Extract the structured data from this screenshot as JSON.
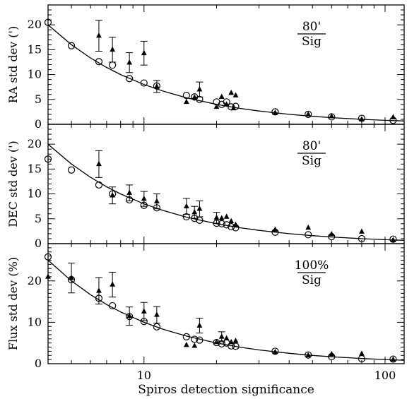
{
  "chart_data": [
    {
      "type": "scatter",
      "xlabel": "Spiros detection significance",
      "ylabel": "RA std dev (')",
      "xlim": [
        4,
        120
      ],
      "ylim": [
        0,
        24
      ],
      "xscale": "log",
      "xticks": [
        10,
        100
      ],
      "yticks": [
        0,
        5,
        10,
        15,
        20
      ],
      "annotation": {
        "numerator": "80'",
        "denominator": "Sig"
      },
      "model_curve": {
        "formula": "80/x",
        "points": [
          [
            4,
            20
          ],
          [
            5,
            16
          ],
          [
            6,
            13.33
          ],
          [
            7,
            11.43
          ],
          [
            8,
            10
          ],
          [
            10,
            8
          ],
          [
            12,
            6.67
          ],
          [
            15,
            5.33
          ],
          [
            20,
            4
          ],
          [
            25,
            3.2
          ],
          [
            30,
            2.67
          ],
          [
            40,
            2
          ],
          [
            50,
            1.6
          ],
          [
            60,
            1.33
          ],
          [
            80,
            1
          ],
          [
            100,
            0.8
          ],
          [
            120,
            0.67
          ]
        ]
      },
      "series": [
        {
          "marker": "circle",
          "points": [
            [
              4,
              20.5
            ],
            [
              5,
              15.8
            ],
            [
              6.5,
              12.6
            ],
            [
              7.4,
              11.9
            ],
            [
              8.7,
              9.2
            ],
            [
              10,
              8.3
            ],
            [
              11.3,
              7.7
            ],
            [
              15,
              5.8
            ],
            [
              16.2,
              5.5
            ],
            [
              17,
              5
            ],
            [
              20,
              4.5
            ],
            [
              21,
              4
            ],
            [
              22,
              4.5
            ],
            [
              23,
              3.5
            ],
            [
              24,
              3.6
            ],
            [
              35,
              2.5
            ],
            [
              48,
              2
            ],
            [
              60,
              1.5
            ],
            [
              80,
              1.2
            ],
            [
              108,
              0.8
            ]
          ]
        },
        {
          "marker": "triangle",
          "points": [
            {
              "x": 6.5,
              "y": 17.8,
              "err": 3.1
            },
            {
              "x": 7.4,
              "y": 15,
              "err": 2.5
            },
            {
              "x": 8.7,
              "y": 12.4,
              "err": 2
            },
            {
              "x": 10,
              "y": 14.3,
              "err": 2.4
            },
            {
              "x": 11.3,
              "y": 7.6,
              "err": 1.2
            },
            {
              "x": 15,
              "y": 4.5,
              "err": 0
            },
            {
              "x": 16.2,
              "y": 5.4,
              "err": 0
            },
            {
              "x": 17,
              "y": 7,
              "err": 1.5
            },
            {
              "x": 20,
              "y": 3.5,
              "err": 0
            },
            {
              "x": 21,
              "y": 5.5,
              "err": 0
            },
            {
              "x": 22,
              "y": 4,
              "err": 0
            },
            {
              "x": 23,
              "y": 6.3,
              "err": 0
            },
            {
              "x": 23.5,
              "y": 3.2,
              "err": 0
            },
            {
              "x": 24,
              "y": 5.8,
              "err": 0
            },
            {
              "x": 35,
              "y": 2.3,
              "err": 0
            },
            {
              "x": 48,
              "y": 2,
              "err": 0
            },
            {
              "x": 60,
              "y": 1.6,
              "err": 0
            },
            {
              "x": 80,
              "y": 1,
              "err": 0
            },
            {
              "x": 108,
              "y": 1.4,
              "err": 0
            }
          ]
        }
      ]
    },
    {
      "type": "scatter",
      "xlabel": "Spiros detection significance",
      "ylabel": "DEC std dev (')",
      "xlim": [
        4,
        120
      ],
      "ylim": [
        0,
        24
      ],
      "xscale": "log",
      "xticks": [
        10,
        100
      ],
      "yticks": [
        0,
        5,
        10,
        15,
        20
      ],
      "annotation": {
        "numerator": "80'",
        "denominator": "Sig"
      },
      "model_curve": {
        "formula": "80/x",
        "points": [
          [
            4,
            20
          ],
          [
            5,
            16
          ],
          [
            6,
            13.33
          ],
          [
            7,
            11.43
          ],
          [
            8,
            10
          ],
          [
            10,
            8
          ],
          [
            12,
            6.67
          ],
          [
            15,
            5.33
          ],
          [
            20,
            4
          ],
          [
            25,
            3.2
          ],
          [
            30,
            2.67
          ],
          [
            40,
            2
          ],
          [
            50,
            1.6
          ],
          [
            60,
            1.33
          ],
          [
            80,
            1
          ],
          [
            100,
            0.8
          ],
          [
            120,
            0.67
          ]
        ]
      },
      "series": [
        {
          "marker": "circle",
          "points": [
            [
              4,
              17
            ],
            [
              5,
              14.8
            ],
            [
              6.5,
              11.8
            ],
            [
              7.4,
              10
            ],
            [
              8.7,
              8.8
            ],
            [
              10,
              7.7
            ],
            [
              11.3,
              7.2
            ],
            [
              15,
              5.4
            ],
            [
              16.2,
              5.1
            ],
            [
              17,
              4.7
            ],
            [
              20,
              4.1
            ],
            [
              21,
              4
            ],
            [
              22,
              3.8
            ],
            [
              23,
              3.4
            ],
            [
              24,
              3.2
            ],
            [
              35,
              2.3
            ],
            [
              48,
              1.8
            ],
            [
              60,
              1.4
            ],
            [
              80,
              1
            ],
            [
              108,
              0.9
            ]
          ]
        },
        {
          "marker": "triangle",
          "points": [
            {
              "x": 6.5,
              "y": 16,
              "err": 2.7
            },
            {
              "x": 7.4,
              "y": 9.7,
              "err": 1.7
            },
            {
              "x": 8.7,
              "y": 10.2,
              "err": 1.6
            },
            {
              "x": 10,
              "y": 9,
              "err": 1.5
            },
            {
              "x": 11.3,
              "y": 8.5,
              "err": 1.5
            },
            {
              "x": 15,
              "y": 7.5,
              "err": 1.6
            },
            {
              "x": 16.2,
              "y": 6.3,
              "err": 1.2
            },
            {
              "x": 17,
              "y": 7,
              "err": 1.6
            },
            {
              "x": 20,
              "y": 5.2,
              "err": 1.1
            },
            {
              "x": 21,
              "y": 5.1,
              "err": 0
            },
            {
              "x": 22,
              "y": 5.4,
              "err": 0
            },
            {
              "x": 23,
              "y": 4.5,
              "err": 0
            },
            {
              "x": 24,
              "y": 3.8,
              "err": 0
            },
            {
              "x": 35,
              "y": 2.8,
              "err": 0
            },
            {
              "x": 48,
              "y": 3.2,
              "err": 0
            },
            {
              "x": 60,
              "y": 1.9,
              "err": 0
            },
            {
              "x": 80,
              "y": 2.4,
              "err": 0
            },
            {
              "x": 108,
              "y": 0.7,
              "err": 0
            }
          ]
        }
      ]
    },
    {
      "type": "scatter",
      "xlabel": "Spiros detection significance",
      "ylabel": "Flux std dev (%)",
      "xlim": [
        4,
        120
      ],
      "ylim": [
        0,
        29
      ],
      "xscale": "log",
      "xticks": [
        10,
        100
      ],
      "yticks": [
        0,
        10,
        20
      ],
      "annotation": {
        "numerator": "100%",
        "denominator": "Sig"
      },
      "model_curve": {
        "formula": "100/x",
        "points": [
          [
            4,
            25
          ],
          [
            5,
            20
          ],
          [
            6,
            16.67
          ],
          [
            7,
            14.29
          ],
          [
            8,
            12.5
          ],
          [
            10,
            10
          ],
          [
            12,
            8.33
          ],
          [
            15,
            6.67
          ],
          [
            20,
            5
          ],
          [
            25,
            4
          ],
          [
            30,
            3.33
          ],
          [
            40,
            2.5
          ],
          [
            50,
            2
          ],
          [
            60,
            1.67
          ],
          [
            80,
            1.25
          ],
          [
            100,
            1
          ],
          [
            120,
            0.83
          ]
        ]
      },
      "series": [
        {
          "marker": "circle",
          "points": [
            [
              4,
              25.8
            ],
            [
              5,
              20.3
            ],
            [
              6.5,
              15.8
            ],
            [
              7.4,
              14
            ],
            [
              8.7,
              11.4
            ],
            [
              10,
              10.2
            ],
            [
              11.3,
              8.9
            ],
            [
              15,
              6.5
            ],
            [
              16.2,
              5.9
            ],
            [
              17,
              5.7
            ],
            [
              20,
              5.1
            ],
            [
              21,
              4.8
            ],
            [
              22,
              5
            ],
            [
              23,
              4.3
            ],
            [
              24,
              4.2
            ],
            [
              35,
              3
            ],
            [
              48,
              2.1
            ],
            [
              60,
              1.7
            ],
            [
              80,
              1.2
            ],
            [
              108,
              1.1
            ]
          ]
        },
        {
          "marker": "triangle",
          "points": [
            {
              "x": 4,
              "y": 21,
              "err": 0
            },
            {
              "x": 5,
              "y": 20.7,
              "err": 3.6
            },
            {
              "x": 6.5,
              "y": 17.6,
              "err": 3.2
            },
            {
              "x": 7.4,
              "y": 19.1,
              "err": 3
            },
            {
              "x": 8.7,
              "y": 11.5,
              "err": 2.2
            },
            {
              "x": 10,
              "y": 12.6,
              "err": 2.2
            },
            {
              "x": 11.3,
              "y": 11.8,
              "err": 2
            },
            {
              "x": 15,
              "y": 4.5,
              "err": 0
            },
            {
              "x": 16.2,
              "y": 4.3,
              "err": 0
            },
            {
              "x": 17,
              "y": 9.2,
              "err": 1.8
            },
            {
              "x": 20,
              "y": 5.2,
              "err": 0
            },
            {
              "x": 21,
              "y": 6.5,
              "err": 1.2
            },
            {
              "x": 22,
              "y": 6.1,
              "err": 0
            },
            {
              "x": 23,
              "y": 5.2,
              "err": 0
            },
            {
              "x": 24,
              "y": 5.5,
              "err": 0
            },
            {
              "x": 35,
              "y": 2.8,
              "err": 0
            },
            {
              "x": 48,
              "y": 2,
              "err": 0
            },
            {
              "x": 60,
              "y": 2.3,
              "err": 0
            },
            {
              "x": 80,
              "y": 2.4,
              "err": 0
            },
            {
              "x": 108,
              "y": 1,
              "err": 0
            }
          ]
        }
      ]
    }
  ]
}
